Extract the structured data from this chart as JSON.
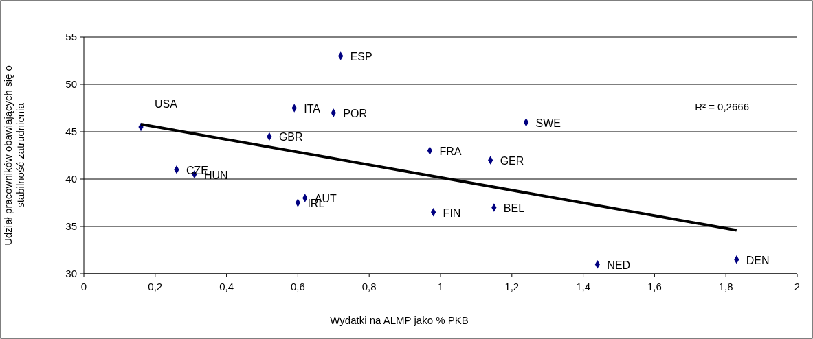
{
  "chart_data": {
    "type": "scatter",
    "xlabel": "Wydatki na ALMP jako % PKB",
    "ylabel": "Udział pracowników obawiających się o stabilność zatrudnienia",
    "xlim": [
      0,
      2
    ],
    "ylim": [
      30,
      55
    ],
    "xticks": [
      0,
      {
        "value": 0.2,
        "label": "0,2"
      },
      {
        "value": 0.4,
        "label": "0,4"
      },
      {
        "value": 0.6,
        "label": "0,6"
      },
      {
        "value": 0.8,
        "label": "0,8"
      },
      1,
      {
        "value": 1.2,
        "label": "1,2"
      },
      {
        "value": 1.4,
        "label": "1,4"
      },
      {
        "value": 1.6,
        "label": "1,6"
      },
      {
        "value": 1.8,
        "label": "1,8"
      },
      2
    ],
    "yticks": [
      30,
      35,
      40,
      45,
      50,
      55
    ],
    "grid": "y",
    "marker": "diamond",
    "series": [
      {
        "color": "#000080",
        "x": [
          0.16,
          0.26,
          0.31,
          0.52,
          0.59,
          0.7,
          0.72,
          0.62,
          0.6,
          0.97,
          1.14,
          1.24,
          0.98,
          1.15,
          1.44,
          1.83
        ],
        "values": [
          45.5,
          41,
          40.5,
          44.5,
          47.5,
          47,
          53,
          38,
          37.5,
          43,
          42,
          46,
          36.5,
          37,
          31,
          31.5
        ]
      },
      {
        "type": "line",
        "color": "#000000",
        "x": [
          0.16,
          1.83
        ],
        "values": [
          45.8,
          34.6
        ],
        "marker": "none",
        "line_style": "solid"
      }
    ],
    "annotations": [
      {
        "text": "USA",
        "x": 0.16,
        "y": 45.5
      },
      {
        "text": "CZE",
        "x": 0.26,
        "y": 41
      },
      {
        "text": "HUN",
        "x": 0.31,
        "y": 40.5
      },
      {
        "text": "GBR",
        "x": 0.52,
        "y": 44.5
      },
      {
        "text": "ITA",
        "x": 0.59,
        "y": 47.5
      },
      {
        "text": "POR",
        "x": 0.7,
        "y": 47
      },
      {
        "text": "ESP",
        "x": 0.72,
        "y": 53
      },
      {
        "text": "AUT",
        "x": 0.62,
        "y": 38
      },
      {
        "text": "IRL",
        "x": 0.6,
        "y": 37.5
      },
      {
        "text": "FRA",
        "x": 0.97,
        "y": 43
      },
      {
        "text": "GER",
        "x": 1.14,
        "y": 42
      },
      {
        "text": "SWE",
        "x": 1.24,
        "y": 46
      },
      {
        "text": "FIN",
        "x": 0.98,
        "y": 36.5
      },
      {
        "text": "BEL",
        "x": 1.15,
        "y": 37
      },
      {
        "text": "NED",
        "x": 1.44,
        "y": 31
      },
      {
        "text": "DEN",
        "x": 1.83,
        "y": 31.5
      },
      "R² = 0,2666"
    ]
  }
}
